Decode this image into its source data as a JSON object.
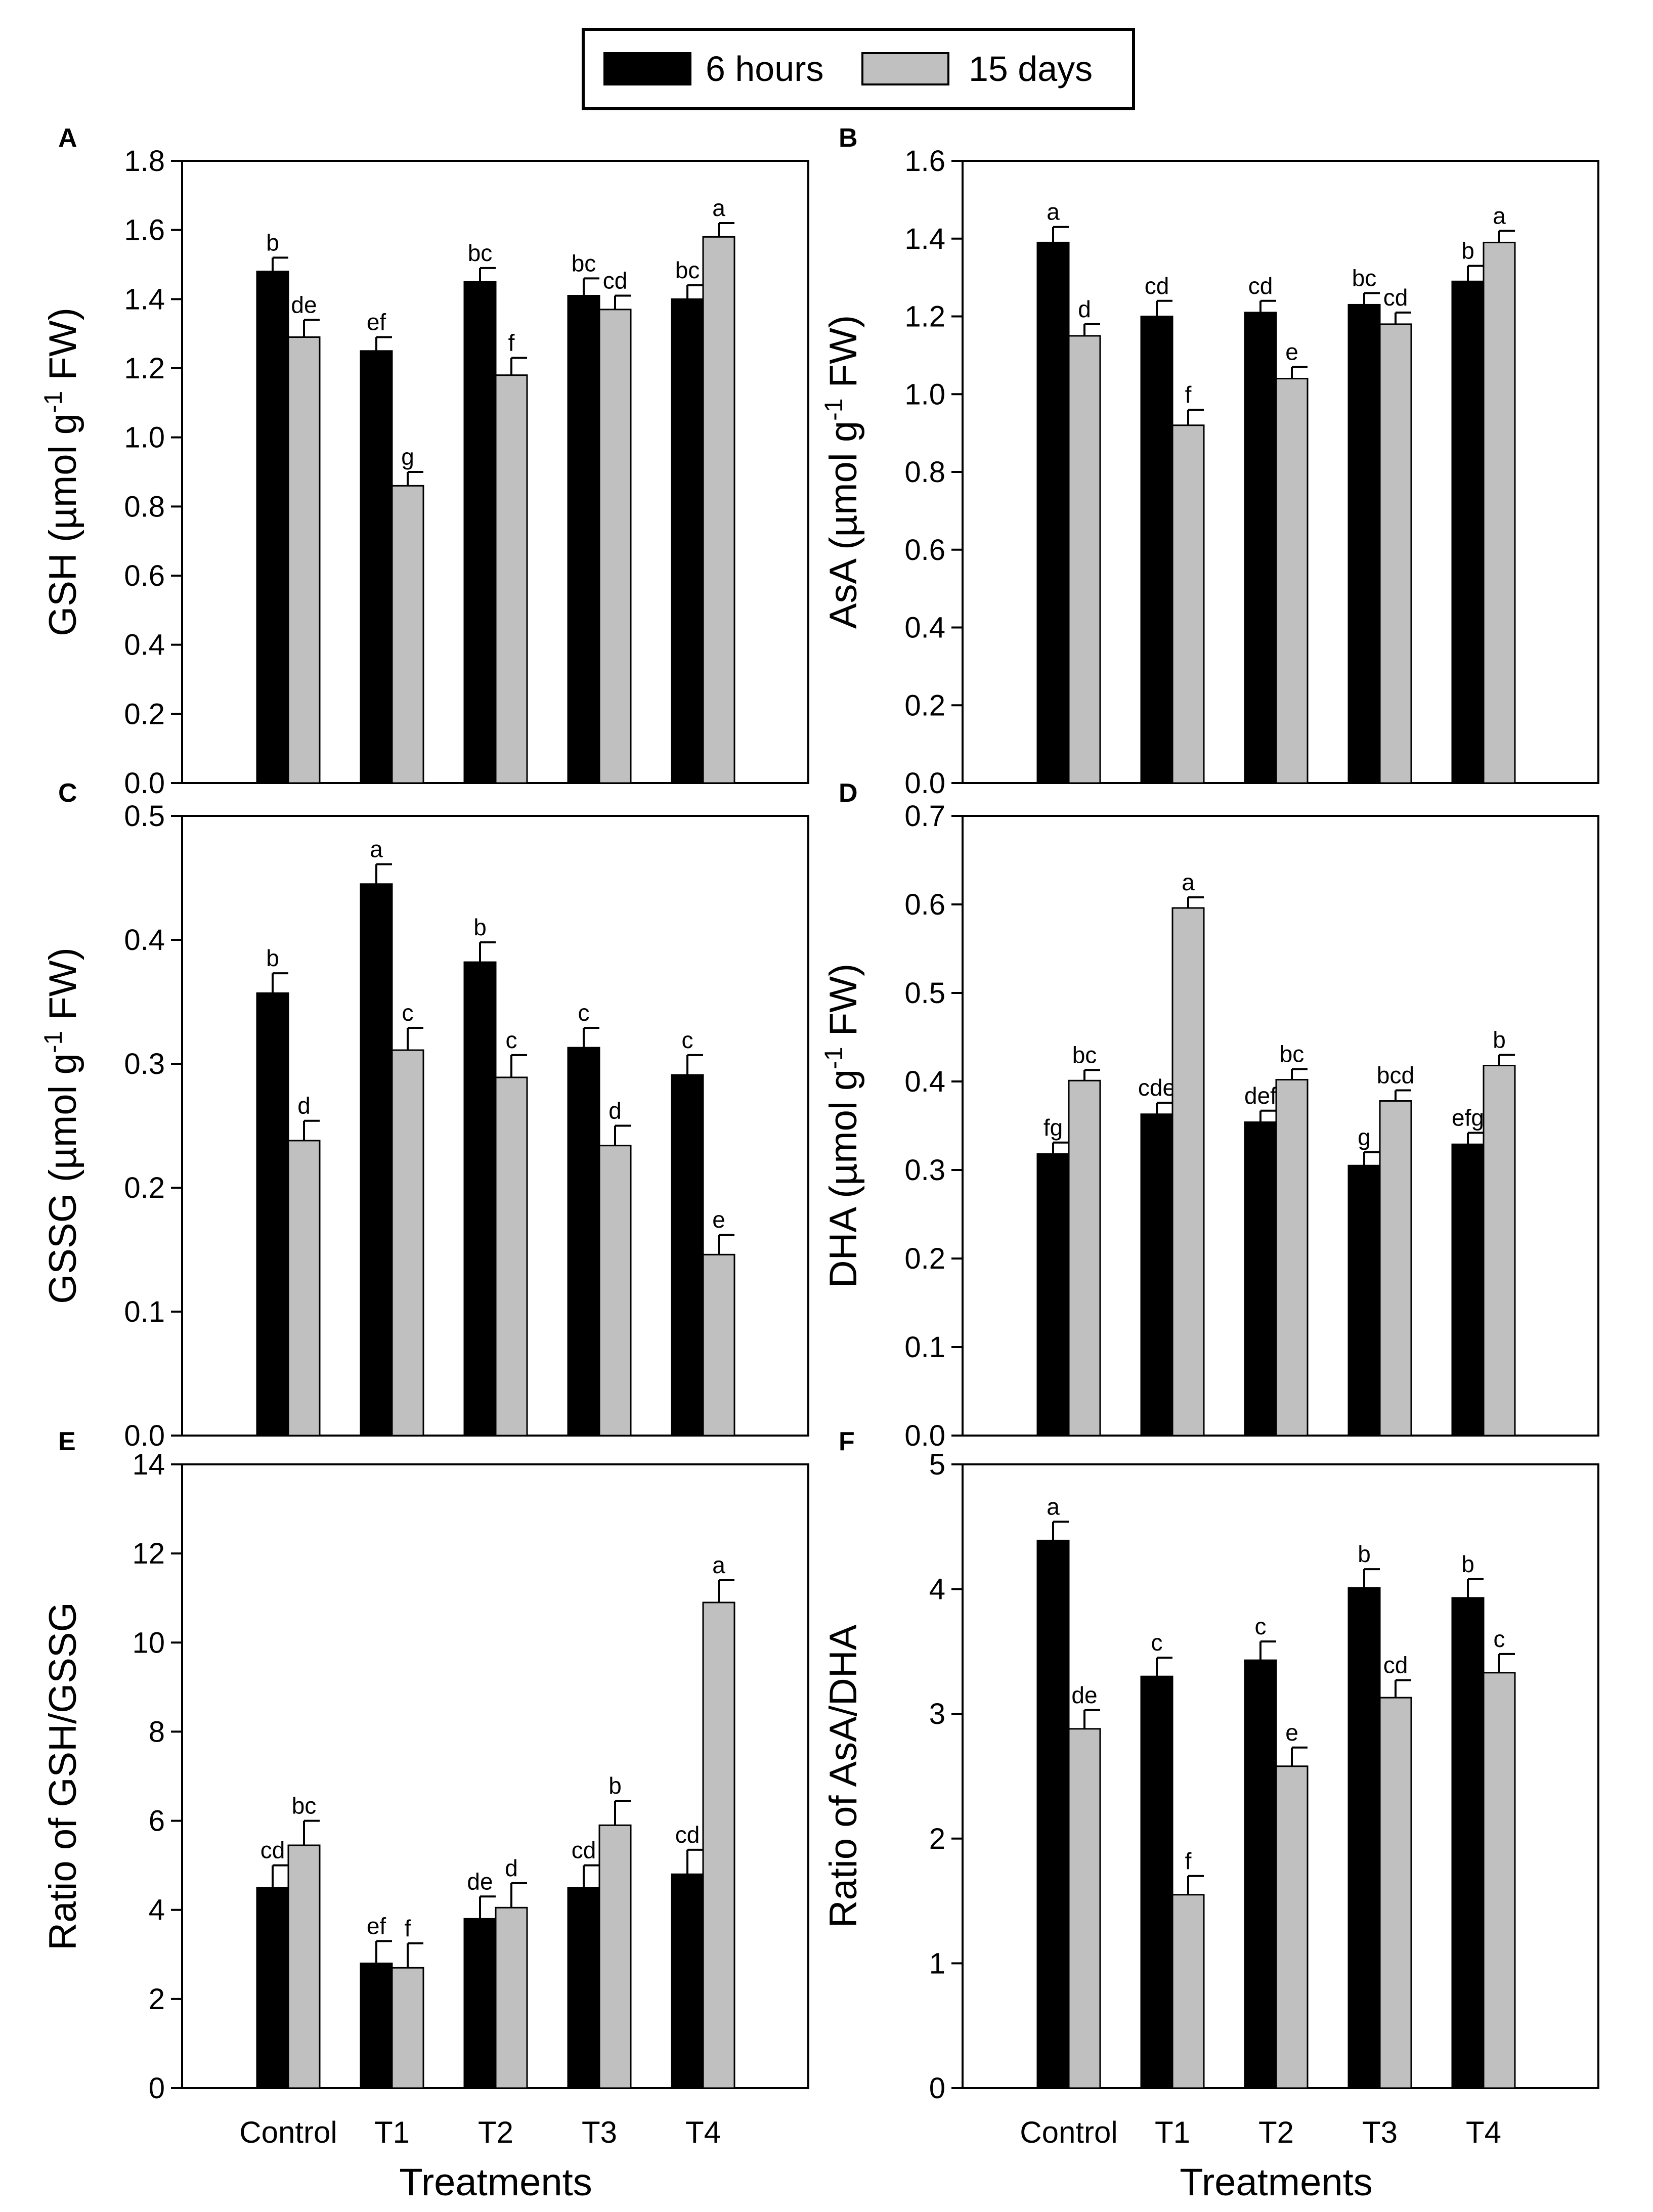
{
  "legend": {
    "items": [
      {
        "label": "6 hours",
        "color": "#000000"
      },
      {
        "label": "15 days",
        "color": "#c0c0c0"
      }
    ]
  },
  "colors": {
    "series_6h": "#000000",
    "series_15d": "#c0c0c0",
    "axis": "#000000"
  },
  "chart_data": [
    {
      "panel": "A",
      "type": "bar",
      "categories": [
        "Control",
        "T1",
        "T2",
        "T3",
        "T4"
      ],
      "ylabel": "GSH (µmol g-1 FW)",
      "ylabel_parts": [
        "GSH (µmol g",
        "-1",
        " FW)"
      ],
      "ylim": [
        0,
        1.8
      ],
      "yticks": [
        "0.0",
        "0.2",
        "0.4",
        "0.6",
        "0.8",
        "1.0",
        "1.2",
        "1.4",
        "1.6",
        "1.8"
      ],
      "series": [
        {
          "name": "6 hours",
          "values": [
            1.48,
            1.25,
            1.45,
            1.41,
            1.4
          ],
          "errors": [
            0.04,
            0.04,
            0.04,
            0.05,
            0.04
          ],
          "letters": [
            "b",
            "ef",
            "bc",
            "bc",
            "bc"
          ]
        },
        {
          "name": "15 days",
          "values": [
            1.29,
            0.86,
            1.18,
            1.37,
            1.58
          ],
          "errors": [
            0.05,
            0.04,
            0.05,
            0.04,
            0.04
          ],
          "letters": [
            "de",
            "g",
            "f",
            "cd",
            "a"
          ]
        }
      ]
    },
    {
      "panel": "B",
      "type": "bar",
      "categories": [
        "Control",
        "T1",
        "T2",
        "T3",
        "T4"
      ],
      "ylabel": "AsA (µmol g-1 FW)",
      "ylabel_parts": [
        "AsA (µmol g",
        "-1",
        " FW)"
      ],
      "ylim": [
        0,
        1.6
      ],
      "yticks": [
        "0.0",
        "0.2",
        "0.4",
        "0.6",
        "0.8",
        "1.0",
        "1.2",
        "1.4",
        "1.6"
      ],
      "series": [
        {
          "name": "6 hours",
          "values": [
            1.39,
            1.2,
            1.21,
            1.23,
            1.29
          ],
          "errors": [
            0.04,
            0.04,
            0.03,
            0.03,
            0.04
          ],
          "letters": [
            "a",
            "cd",
            "cd",
            "bc",
            "b"
          ]
        },
        {
          "name": "15 days",
          "values": [
            1.15,
            0.92,
            1.04,
            1.18,
            1.39
          ],
          "errors": [
            0.03,
            0.04,
            0.03,
            0.03,
            0.03
          ],
          "letters": [
            "d",
            "f",
            "e",
            "cd",
            "a"
          ]
        }
      ]
    },
    {
      "panel": "C",
      "type": "bar",
      "categories": [
        "Control",
        "T1",
        "T2",
        "T3",
        "T4"
      ],
      "ylabel": "GSSG (µmol g-1 FW)",
      "ylabel_parts": [
        "GSSG (µmol g",
        "-1",
        " FW)"
      ],
      "ylim": [
        0,
        0.5
      ],
      "yticks": [
        "0.0",
        "0.1",
        "0.2",
        "0.3",
        "0.4",
        "0.5"
      ],
      "series": [
        {
          "name": "6 hours",
          "values": [
            0.357,
            0.445,
            0.382,
            0.313,
            0.291
          ],
          "errors": [
            0.016,
            0.016,
            0.016,
            0.016,
            0.016
          ],
          "letters": [
            "b",
            "a",
            "b",
            "c",
            "c"
          ]
        },
        {
          "name": "15 days",
          "values": [
            0.238,
            0.311,
            0.289,
            0.234,
            0.146
          ],
          "errors": [
            0.016,
            0.018,
            0.018,
            0.016,
            0.016
          ],
          "letters": [
            "d",
            "c",
            "c",
            "d",
            "e"
          ]
        }
      ]
    },
    {
      "panel": "D",
      "type": "bar",
      "categories": [
        "Control",
        "T1",
        "T2",
        "T3",
        "T4"
      ],
      "ylabel": "DHA (µmol g-1 FW)",
      "ylabel_parts": [
        "DHA (µmol g",
        "-1",
        " FW)"
      ],
      "ylim": [
        0,
        0.7
      ],
      "yticks": [
        "0.0",
        "0.1",
        "0.2",
        "0.3",
        "0.4",
        "0.5",
        "0.6",
        "0.7"
      ],
      "series": [
        {
          "name": "6 hours",
          "values": [
            0.318,
            0.363,
            0.354,
            0.305,
            0.329
          ],
          "errors": [
            0.013,
            0.013,
            0.013,
            0.015,
            0.013
          ],
          "letters": [
            "fg",
            "cde",
            "def",
            "g",
            "efg"
          ]
        },
        {
          "name": "15 days",
          "values": [
            0.401,
            0.596,
            0.402,
            0.378,
            0.418
          ],
          "errors": [
            0.012,
            0.012,
            0.012,
            0.012,
            0.012
          ],
          "letters": [
            "bc",
            "a",
            "bc",
            "bcd",
            "b"
          ]
        }
      ]
    },
    {
      "panel": "E",
      "type": "bar",
      "categories": [
        "Control",
        "T1",
        "T2",
        "T3",
        "T4"
      ],
      "xlabel": "Treatments",
      "ylabel": "Ratio of GSH/GSSG",
      "ylabel_parts": [
        "Ratio of GSH/GSSG"
      ],
      "ylim": [
        0,
        14
      ],
      "yticks": [
        "0",
        "2",
        "4",
        "6",
        "8",
        "10",
        "12",
        "14"
      ],
      "series": [
        {
          "name": "6 hours",
          "values": [
            4.5,
            2.8,
            3.8,
            4.5,
            4.8
          ],
          "errors": [
            0.5,
            0.5,
            0.5,
            0.5,
            0.55
          ],
          "letters": [
            "cd",
            "ef",
            "de",
            "cd",
            "cd"
          ]
        },
        {
          "name": "15 days",
          "values": [
            5.45,
            2.7,
            4.05,
            5.9,
            10.9
          ],
          "errors": [
            0.55,
            0.55,
            0.55,
            0.55,
            0.5
          ],
          "letters": [
            "bc",
            "f",
            "d",
            "b",
            "a"
          ]
        }
      ]
    },
    {
      "panel": "F",
      "type": "bar",
      "categories": [
        "Control",
        "T1",
        "T2",
        "T3",
        "T4"
      ],
      "xlabel": "Treatments",
      "ylabel": "Ratio of  AsA/DHA",
      "ylabel_parts": [
        "Ratio of  AsA/DHA"
      ],
      "ylim": [
        0,
        5
      ],
      "yticks": [
        "0",
        "1",
        "2",
        "3",
        "4",
        "5"
      ],
      "series": [
        {
          "name": "6 hours",
          "values": [
            4.39,
            3.3,
            3.43,
            4.01,
            3.93
          ],
          "errors": [
            0.15,
            0.15,
            0.15,
            0.15,
            0.15
          ],
          "letters": [
            "a",
            "c",
            "c",
            "b",
            "b"
          ]
        },
        {
          "name": "15 days",
          "values": [
            2.88,
            1.55,
            2.58,
            3.13,
            3.33
          ],
          "errors": [
            0.15,
            0.15,
            0.15,
            0.14,
            0.15
          ],
          "letters": [
            "de",
            "f",
            "e",
            "cd",
            "c"
          ]
        }
      ]
    }
  ]
}
